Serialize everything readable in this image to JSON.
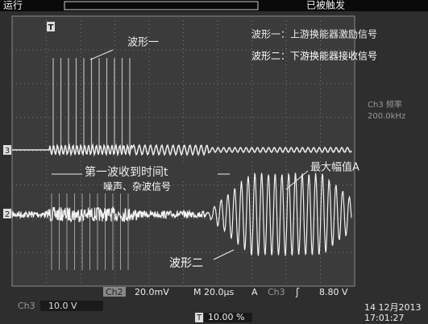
{
  "header": {
    "status": "运行",
    "trigger_state": "已被触发",
    "trigger_marker": "T"
  },
  "legend": {
    "wave1": "波形一：上游换能器激励信号",
    "wave2": "波形二：下游换能器接收信号"
  },
  "annotations": {
    "wave1_label": "波形一",
    "first_arrival": "第一波收到时间t",
    "noise": "噪声、杂波信号",
    "max_amplitude": "最大幅值A",
    "wave2_label": "波形二"
  },
  "side_panel": {
    "label": "Ch3 频率",
    "value": "200.0kHz"
  },
  "channel_markers": {
    "ch3": "3",
    "ch2": "2"
  },
  "footer": {
    "ch2_name": "Ch2",
    "ch2_scale": "20.0mV",
    "timebase": "M 20.0µs",
    "trigger_mode": "A",
    "trigger_source": "Ch3",
    "trigger_slope": "ʃ",
    "trigger_level": "8.80 V",
    "ch3_name": "Ch3",
    "ch3_scale": "10.0 V",
    "position_marker": "T",
    "position": "10.00 %",
    "date": "14 12月2013",
    "time": "17:01:27"
  }
}
